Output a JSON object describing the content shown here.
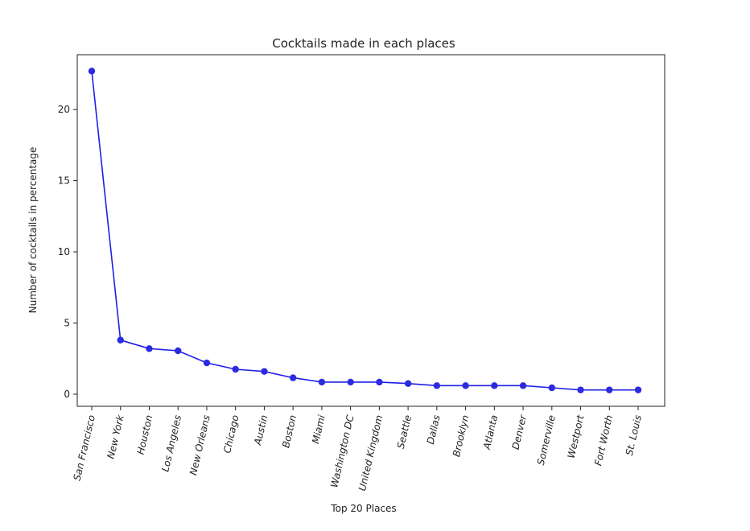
{
  "chart_data": {
    "type": "line",
    "title": "Cocktails made in each places",
    "xlabel": "Top 20 Places",
    "ylabel": "Number of cocktails in percentage",
    "categories": [
      "San Francisco",
      "New York",
      "Houston",
      "Los Angeles",
      "New Orleans",
      "Chicago",
      "Austin",
      "Boston",
      "Miami",
      "Washington DC",
      "United Kingdom",
      "Seattle",
      "Dallas",
      "Brooklyn",
      "Atlanta",
      "Denver",
      "Somerville",
      "Westport",
      "Fort Worth",
      "St. Louis"
    ],
    "series": [
      {
        "values": [
          22.7,
          3.8,
          3.2,
          3.05,
          2.2,
          1.75,
          1.6,
          1.15,
          0.85,
          0.85,
          0.85,
          0.75,
          0.6,
          0.6,
          0.6,
          0.6,
          0.45,
          0.3,
          0.3,
          0.3
        ]
      }
    ],
    "yticks": [
      0,
      5,
      10,
      15,
      20
    ],
    "ylim": [
      -0.85,
      23.85
    ],
    "grid": false,
    "colors": {
      "line": "#1f1fe6",
      "marker": "#2b2be0",
      "axes": "#222222"
    }
  }
}
